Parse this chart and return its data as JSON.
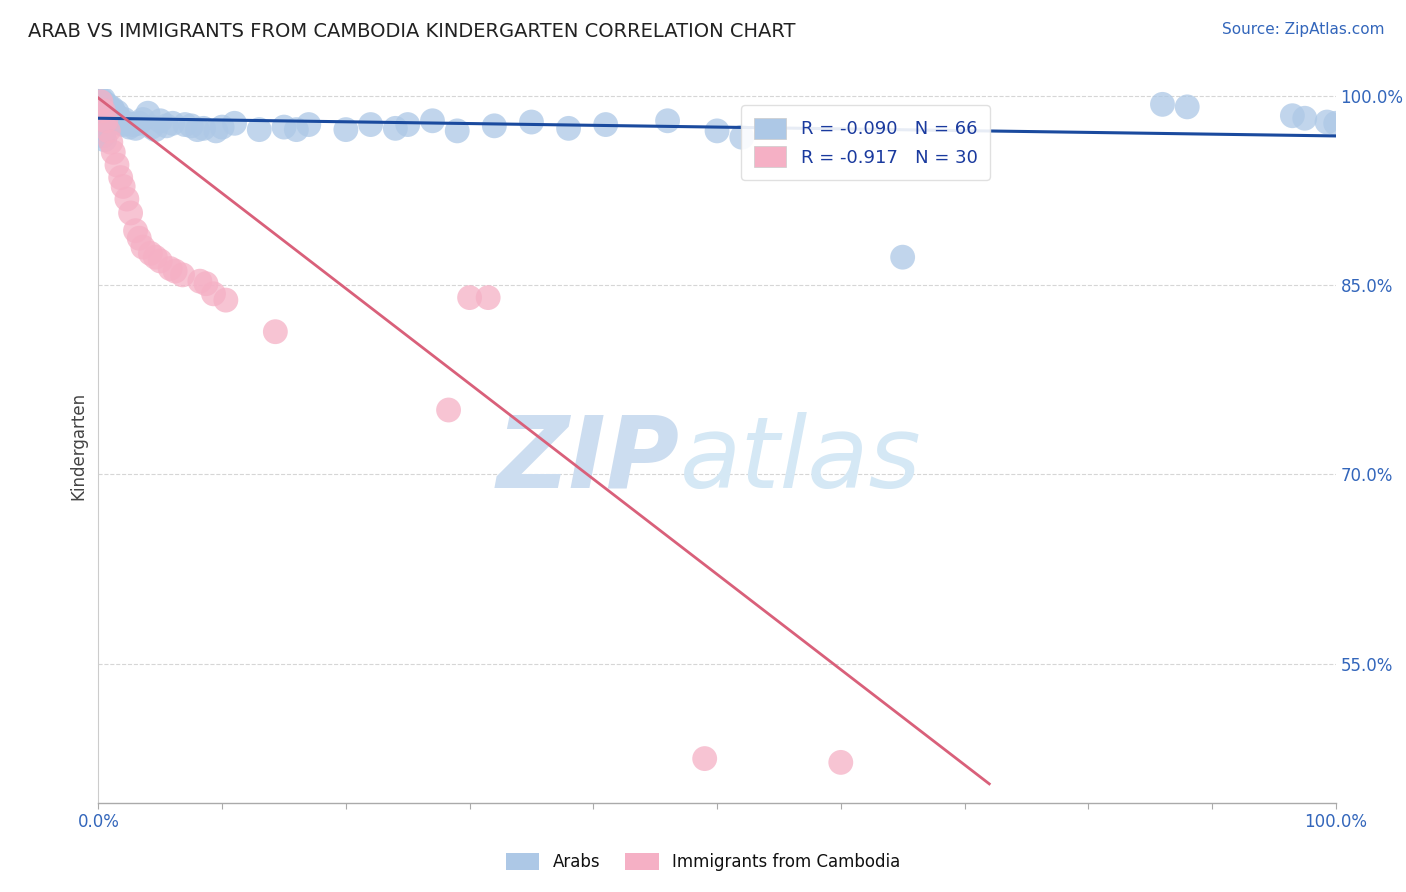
{
  "title": "ARAB VS IMMIGRANTS FROM CAMBODIA KINDERGARTEN CORRELATION CHART",
  "source_text": "Source: ZipAtlas.com",
  "ylabel": "Kindergarten",
  "xlim": [
    0.0,
    1.0
  ],
  "ylim": [
    0.44,
    1.005
  ],
  "watermark_zip": "ZIP",
  "watermark_atlas": "atlas",
  "legend_blue_label": "Arabs",
  "legend_pink_label": "Immigrants from Cambodia",
  "r_blue": -0.09,
  "n_blue": 66,
  "r_pink": -0.917,
  "n_pink": 30,
  "blue_color": "#adc8e6",
  "pink_color": "#f5b0c5",
  "blue_line_color": "#1a4a9e",
  "pink_line_color": "#d9607a",
  "background_color": "#ffffff",
  "title_color": "#222222",
  "tick_color": "#3366bb",
  "grid_color": "#cccccc",
  "y_ticks": [
    1.0,
    0.85,
    0.7,
    0.55
  ],
  "y_tick_labels": [
    "100.0%",
    "85.0%",
    "70.0%",
    "55.0%"
  ],
  "blue_dots": [
    [
      0.002,
      0.997
    ],
    [
      0.003,
      0.994
    ],
    [
      0.004,
      0.997
    ],
    [
      0.005,
      0.994
    ],
    [
      0.006,
      0.992
    ],
    [
      0.007,
      0.99
    ],
    [
      0.008,
      0.992
    ],
    [
      0.009,
      0.988
    ],
    [
      0.01,
      0.986
    ],
    [
      0.011,
      0.99
    ],
    [
      0.012,
      0.988
    ],
    [
      0.013,
      0.985
    ],
    [
      0.015,
      0.987
    ],
    [
      0.016,
      0.983
    ],
    [
      0.017,
      0.981
    ],
    [
      0.018,
      0.98
    ],
    [
      0.019,
      0.978
    ],
    [
      0.02,
      0.977
    ],
    [
      0.021,
      0.981
    ],
    [
      0.023,
      0.978
    ],
    [
      0.025,
      0.975
    ],
    [
      0.028,
      0.977
    ],
    [
      0.03,
      0.974
    ],
    [
      0.033,
      0.978
    ],
    [
      0.036,
      0.981
    ],
    [
      0.04,
      0.986
    ],
    [
      0.043,
      0.975
    ],
    [
      0.046,
      0.973
    ],
    [
      0.05,
      0.98
    ],
    [
      0.055,
      0.976
    ],
    [
      0.06,
      0.978
    ],
    [
      0.07,
      0.977
    ],
    [
      0.075,
      0.976
    ],
    [
      0.08,
      0.973
    ],
    [
      0.085,
      0.974
    ],
    [
      0.095,
      0.972
    ],
    [
      0.1,
      0.975
    ],
    [
      0.11,
      0.978
    ],
    [
      0.13,
      0.973
    ],
    [
      0.15,
      0.975
    ],
    [
      0.16,
      0.973
    ],
    [
      0.17,
      0.977
    ],
    [
      0.2,
      0.973
    ],
    [
      0.22,
      0.977
    ],
    [
      0.24,
      0.974
    ],
    [
      0.25,
      0.977
    ],
    [
      0.27,
      0.98
    ],
    [
      0.29,
      0.972
    ],
    [
      0.32,
      0.976
    ],
    [
      0.35,
      0.979
    ],
    [
      0.38,
      0.974
    ],
    [
      0.41,
      0.977
    ],
    [
      0.46,
      0.98
    ],
    [
      0.5,
      0.972
    ],
    [
      0.52,
      0.967
    ],
    [
      0.65,
      0.872
    ],
    [
      0.86,
      0.993
    ],
    [
      0.88,
      0.991
    ],
    [
      0.965,
      0.984
    ],
    [
      0.975,
      0.982
    ],
    [
      0.993,
      0.979
    ],
    [
      1.0,
      0.978
    ],
    [
      0.002,
      0.978
    ],
    [
      0.003,
      0.972
    ],
    [
      0.004,
      0.968
    ],
    [
      0.005,
      0.965
    ]
  ],
  "pink_dots": [
    [
      0.002,
      0.995
    ],
    [
      0.004,
      0.988
    ],
    [
      0.006,
      0.98
    ],
    [
      0.008,
      0.972
    ],
    [
      0.01,
      0.963
    ],
    [
      0.012,
      0.955
    ],
    [
      0.015,
      0.945
    ],
    [
      0.018,
      0.935
    ],
    [
      0.02,
      0.928
    ],
    [
      0.023,
      0.918
    ],
    [
      0.026,
      0.907
    ],
    [
      0.03,
      0.893
    ],
    [
      0.033,
      0.887
    ],
    [
      0.036,
      0.88
    ],
    [
      0.042,
      0.875
    ],
    [
      0.046,
      0.872
    ],
    [
      0.05,
      0.869
    ],
    [
      0.058,
      0.863
    ],
    [
      0.062,
      0.861
    ],
    [
      0.068,
      0.858
    ],
    [
      0.082,
      0.853
    ],
    [
      0.087,
      0.851
    ],
    [
      0.093,
      0.843
    ],
    [
      0.103,
      0.838
    ],
    [
      0.143,
      0.813
    ],
    [
      0.283,
      0.751
    ],
    [
      0.3,
      0.84
    ],
    [
      0.315,
      0.84
    ],
    [
      0.49,
      0.475
    ],
    [
      0.6,
      0.472
    ]
  ],
  "blue_trendline_x": [
    0.0,
    1.0
  ],
  "blue_trendline_y": [
    0.982,
    0.968
  ],
  "pink_trendline_x": [
    0.0,
    0.72
  ],
  "pink_trendline_y": [
    0.998,
    0.455
  ]
}
